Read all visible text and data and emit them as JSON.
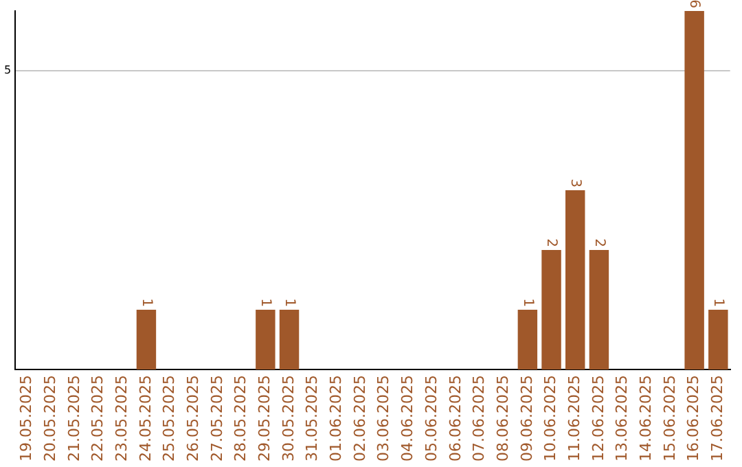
{
  "chart_data": {
    "type": "bar",
    "categories": [
      "19.05.2025",
      "20.05.2025",
      "21.05.2025",
      "22.05.2025",
      "23.05.2025",
      "24.05.2025",
      "25.05.2025",
      "26.05.2025",
      "27.05.2025",
      "28.05.2025",
      "29.05.2025",
      "30.05.2025",
      "31.05.2025",
      "01.06.2025",
      "02.06.2025",
      "03.06.2025",
      "04.06.2025",
      "05.06.2025",
      "06.06.2025",
      "07.06.2025",
      "08.06.2025",
      "09.06.2025",
      "10.06.2025",
      "11.06.2025",
      "12.06.2025",
      "13.06.2025",
      "14.06.2025",
      "15.06.2025",
      "16.06.2025",
      "17.06.2025"
    ],
    "values": [
      0,
      0,
      0,
      0,
      0,
      1,
      0,
      0,
      0,
      0,
      1,
      1,
      0,
      0,
      0,
      0,
      0,
      0,
      0,
      0,
      0,
      1,
      2,
      3,
      2,
      0,
      0,
      0,
      6,
      1
    ],
    "value_labels": [
      null,
      null,
      null,
      null,
      null,
      "1",
      null,
      null,
      null,
      null,
      "1",
      "1",
      null,
      null,
      null,
      null,
      null,
      null,
      null,
      null,
      null,
      "1",
      "2",
      "3",
      "2",
      null,
      null,
      null,
      "6",
      "1"
    ],
    "color": "#a0582a",
    "ylim": [
      0,
      6
    ],
    "yticks": [
      5
    ],
    "grid": "y",
    "legend": false
  }
}
